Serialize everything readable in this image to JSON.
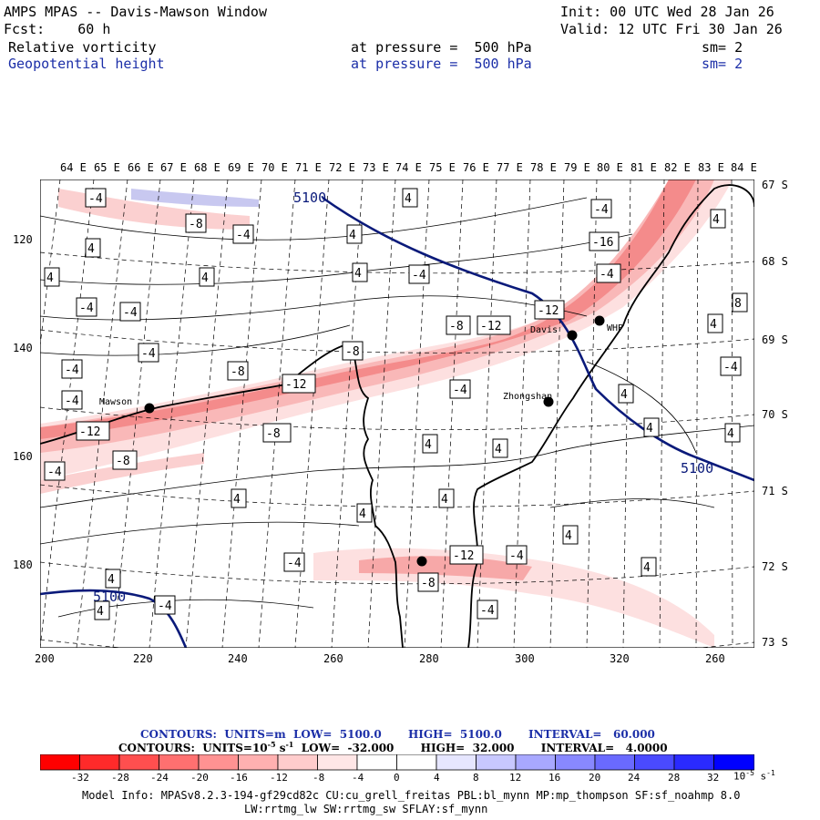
{
  "header": {
    "line1_left": "AMPS MPAS -- Davis-Mawson Window",
    "line1_right": "Init: 00 UTC Wed 28 Jan 26",
    "line2_left": "Fcst:    60 h",
    "line2_right": "Valid: 12 UTC Fri 30 Jan 26",
    "field1_name": "Relative vorticity",
    "field1_pressure": "at pressure =  500 hPa",
    "field1_sm": "sm= 2",
    "field2_name": "Geopotential height",
    "field2_pressure": "at pressure =  500 hPa",
    "field2_sm": "sm= 2"
  },
  "map": {
    "longitude_labels": [
      "64 E",
      "65 E",
      "66 E",
      "67 E",
      "68 E",
      "69 E",
      "70 E",
      "71 E",
      "72 E",
      "73 E",
      "74 E",
      "75 E",
      "76 E",
      "77 E",
      "78 E",
      "79 E",
      "80 E",
      "81 E",
      "82 E",
      "83 E",
      "84 E"
    ],
    "latitude_labels": [
      "67 S",
      "68 S",
      "69 S",
      "70 S",
      "71 S",
      "72 S",
      "73 S"
    ],
    "x_ticks": [
      "200",
      "220",
      "240",
      "260",
      "280",
      "300",
      "320"
    ],
    "y_ticks": [
      "120",
      "140",
      "160",
      "180"
    ],
    "stations": [
      {
        "name": "Mawson"
      },
      {
        "name": "Davis"
      },
      {
        "name": "WHP"
      },
      {
        "name": "Zhongshan"
      }
    ],
    "height_contour_labels": [
      "5100",
      "5100",
      "5100"
    ],
    "vorticity_labels": [
      "-4",
      "-8",
      "-12",
      "-16",
      "4",
      "8"
    ]
  },
  "footer": {
    "contours1": "CONTOURS:  UNITS=m  LOW=  5100.0       HIGH=  5100.0       INTERVAL=   60.000",
    "contours2": "CONTOURS:  UNITS=10",
    "contours2_exp": "-5",
    "contours2_unit": " s",
    "contours2_unitexp": "-1",
    "contours2_rest": "  LOW=  -32.000       HIGH=  32.000       INTERVAL=   4.0000",
    "colorbar_labels": [
      "-32",
      "-28",
      "-24",
      "-20",
      "-16",
      "-12",
      "-8",
      "-4",
      "0",
      "4",
      "8",
      "12",
      "16",
      "20",
      "24",
      "28",
      "32"
    ],
    "colorbar_units": "10",
    "colorbar_units_exp": "-5",
    "colorbar_units_tail": " s",
    "colorbar_units_tail_exp": "-1",
    "model_info_1": "Model Info: MPASv8.2.3-194-gf29cd82c CU:cu_grell_freitas PBL:bl_mynn MP:mp_thompson SF:sf_noahmp 8.0",
    "model_info_2": "LW:rrtmg_lw SW:rrtmg_sw SFLAY:sf_mynn"
  },
  "colors": {
    "height_contour": "#0a1a7a",
    "neg_strong": "#ff0000",
    "pos_strong": "#0000ff"
  }
}
